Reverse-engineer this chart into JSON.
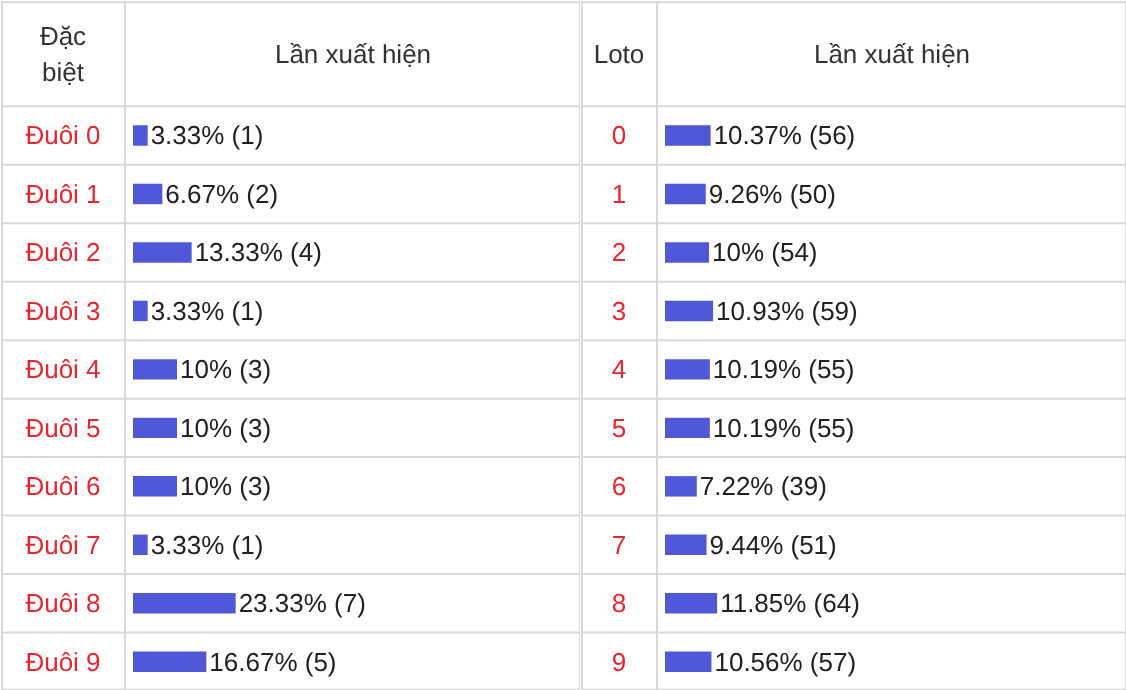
{
  "chart_data": [
    {
      "type": "bar",
      "orientation": "horizontal",
      "ylabel": "Đặc biệt",
      "xlabel": "Lần xuất hiện",
      "color": "#5058d8",
      "categories": [
        "Đuôi 0",
        "Đuôi 1",
        "Đuôi 2",
        "Đuôi 3",
        "Đuôi 4",
        "Đuôi 5",
        "Đuôi 6",
        "Đuôi 7",
        "Đuôi 8",
        "Đuôi 9"
      ],
      "values": [
        3.33,
        6.67,
        13.33,
        3.33,
        10,
        10,
        10,
        3.33,
        23.33,
        16.67
      ],
      "value_labels": [
        "3.33% (1)",
        "6.67% (2)",
        "13.33% (4)",
        "3.33% (1)",
        "10% (3)",
        "10% (3)",
        "10% (3)",
        "3.33% (1)",
        "23.33% (7)",
        "16.67% (5)"
      ]
    },
    {
      "type": "bar",
      "orientation": "horizontal",
      "ylabel": "Loto",
      "xlabel": "Lần xuất hiện",
      "color": "#5058d8",
      "categories": [
        "0",
        "1",
        "2",
        "3",
        "4",
        "5",
        "6",
        "7",
        "8",
        "9"
      ],
      "values": [
        10.37,
        9.26,
        10,
        10.93,
        10.19,
        10.19,
        7.22,
        9.44,
        11.85,
        10.56
      ],
      "value_labels": [
        "10.37% (56)",
        "9.26% (50)",
        "10% (54)",
        "10.93% (59)",
        "10.19% (55)",
        "10.19% (55)",
        "7.22% (39)",
        "9.44% (51)",
        "11.85% (64)",
        "10.56% (57)"
      ]
    }
  ]
}
